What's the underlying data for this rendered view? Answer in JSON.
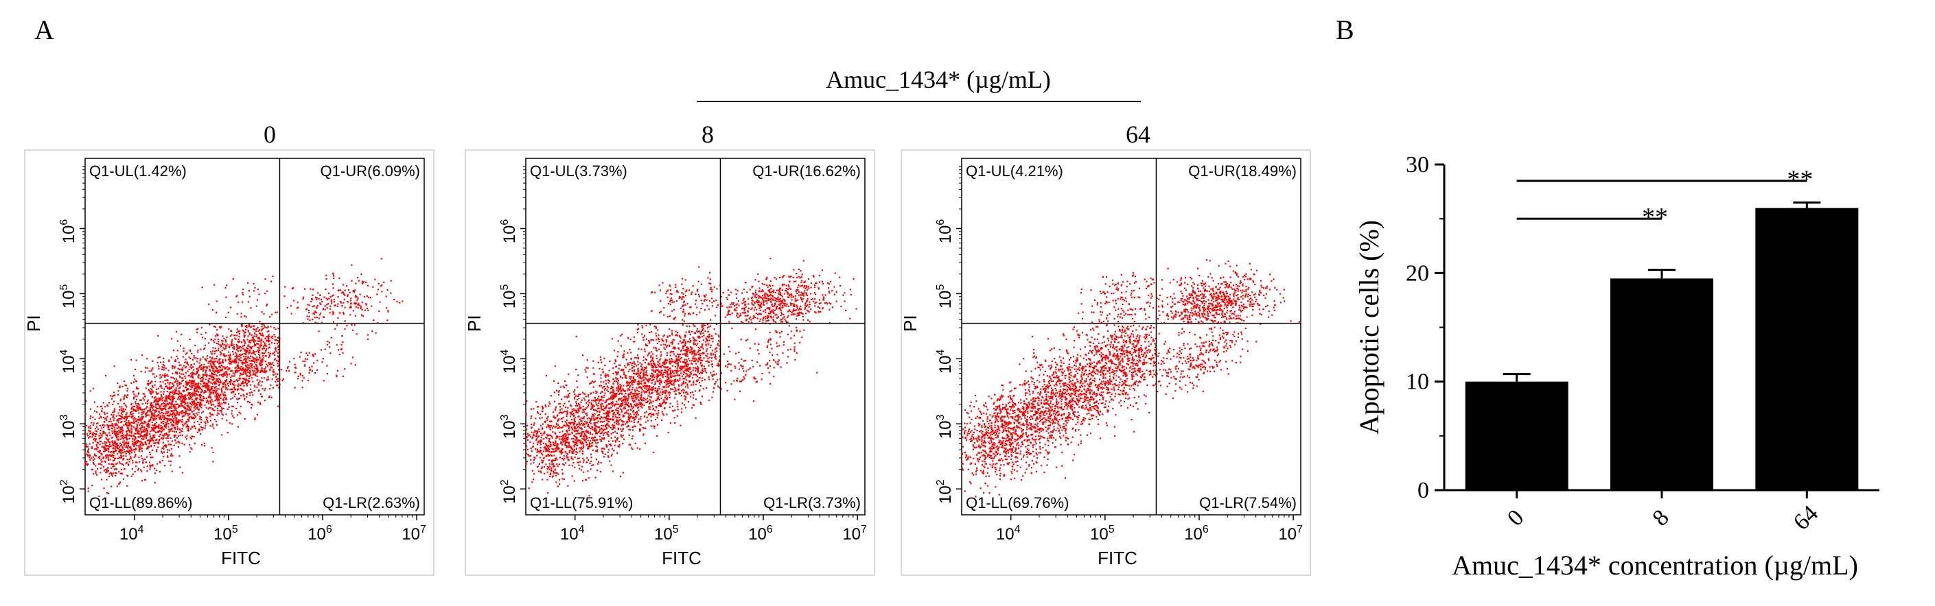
{
  "panel_a_letter": "A",
  "panel_b_letter": "B",
  "group_header": "Amuc_1434* (µg/mL)",
  "colors": {
    "dots": "#ff0000",
    "bars": "#000000",
    "lines": "#000000",
    "plot_bg": "#ffffff"
  },
  "chart_data": [
    {
      "type": "scatter",
      "title": "0",
      "xlabel": "FITC",
      "ylabel": "PI",
      "axis_scale": "log10",
      "xlim": [
        3000,
        12000000
      ],
      "ylim": [
        40,
        12000000
      ],
      "x_ticks": [
        4,
        5,
        6,
        7
      ],
      "y_ticks": [
        2,
        3,
        4,
        5,
        6
      ],
      "tick_base": "10",
      "gate_x": 350000,
      "gate_y": 35000,
      "quadrants": {
        "UL": "Q1-UL(1.42%)",
        "UR": "Q1-UR(6.09%)",
        "LL": "Q1-LL(89.86%)",
        "LR": "Q1-LR(2.63%)"
      },
      "quadrant_percent": {
        "UL": 1.42,
        "UR": 6.09,
        "LL": 89.86,
        "LR": 2.63
      }
    },
    {
      "type": "scatter",
      "title": "8",
      "xlabel": "FITC",
      "ylabel": "PI",
      "axis_scale": "log10",
      "xlim": [
        3000,
        12000000
      ],
      "ylim": [
        40,
        12000000
      ],
      "x_ticks": [
        4,
        5,
        6,
        7
      ],
      "y_ticks": [
        2,
        3,
        4,
        5,
        6
      ],
      "tick_base": "10",
      "gate_x": 350000,
      "gate_y": 35000,
      "quadrants": {
        "UL": "Q1-UL(3.73%)",
        "UR": "Q1-UR(16.62%)",
        "LL": "Q1-LL(75.91%)",
        "LR": "Q1-LR(3.73%)"
      },
      "quadrant_percent": {
        "UL": 3.73,
        "UR": 16.62,
        "LL": 75.91,
        "LR": 3.73
      }
    },
    {
      "type": "scatter",
      "title": "64",
      "xlabel": "FITC",
      "ylabel": "PI",
      "axis_scale": "log10",
      "xlim": [
        3000,
        12000000
      ],
      "ylim": [
        40,
        12000000
      ],
      "x_ticks": [
        4,
        5,
        6,
        7
      ],
      "y_ticks": [
        2,
        3,
        4,
        5,
        6
      ],
      "tick_base": "10",
      "gate_x": 350000,
      "gate_y": 35000,
      "quadrants": {
        "UL": "Q1-UL(4.21%)",
        "UR": "Q1-UR(18.49%)",
        "LL": "Q1-LL(69.76%)",
        "LR": "Q1-LR(7.54%)"
      },
      "quadrant_percent": {
        "UL": 4.21,
        "UR": 18.49,
        "LL": 69.76,
        "LR": 7.54
      }
    },
    {
      "type": "bar",
      "categories": [
        "0",
        "8",
        "64"
      ],
      "values": [
        10.0,
        19.5,
        26.0
      ],
      "errors": [
        0.7,
        0.8,
        0.5
      ],
      "ylim": [
        0,
        30
      ],
      "yticks": [
        0,
        10,
        20,
        30
      ],
      "ylabel": "Apoptotic cells (%)",
      "xlabel": "Amuc_1434* concentration (µg/mL)",
      "significance": [
        {
          "from": 0,
          "to": 1,
          "label": "**",
          "y": 25
        },
        {
          "from": 0,
          "to": 2,
          "label": "**",
          "y": 28.5
        }
      ]
    }
  ]
}
